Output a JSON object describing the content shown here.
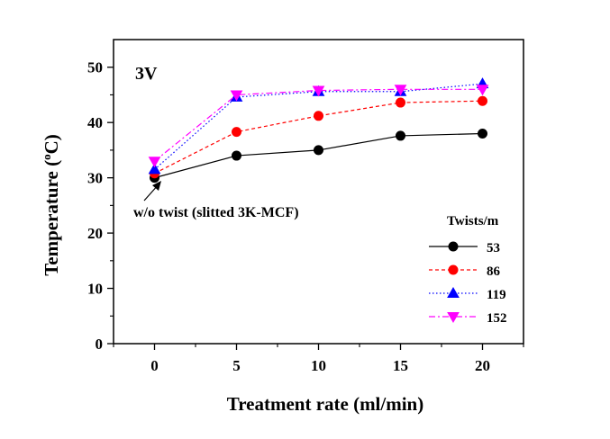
{
  "chart_data": {
    "type": "line",
    "panel_label": "3V",
    "xlabel": "Treatment rate (ml/min)",
    "ylabel": {
      "prefix": "Temperature (",
      "sup": "o",
      "suffix": "C)"
    },
    "xlim": [
      -2.5,
      22.5
    ],
    "ylim": [
      0,
      55
    ],
    "xticks": [
      0,
      5,
      10,
      15,
      20
    ],
    "yticks": [
      0,
      10,
      20,
      30,
      40,
      50
    ],
    "x": [
      0,
      5,
      10,
      15,
      20
    ],
    "legend_title": "Twists/m",
    "legend_position": "bottom-right",
    "annotation": "w/o twist (slitted 3K-MCF)",
    "series": [
      {
        "name": "53",
        "values": [
          30.0,
          34.0,
          35.0,
          37.6,
          38.0
        ],
        "color": "#000000",
        "marker": "circle",
        "dash": ""
      },
      {
        "name": "86",
        "values": [
          30.8,
          38.3,
          41.2,
          43.6,
          43.9
        ],
        "color": "#ff0000",
        "marker": "circle",
        "dash": "4,3"
      },
      {
        "name": "119",
        "values": [
          31.5,
          44.6,
          45.6,
          45.6,
          47.0
        ],
        "color": "#0000ff",
        "marker": "triangle-up",
        "dash": "1.5,2.5"
      },
      {
        "name": "152",
        "values": [
          33.0,
          45.0,
          45.8,
          46.0,
          46.0
        ],
        "color": "#ff00ff",
        "marker": "triangle-down",
        "dash": "7,3,2,3"
      }
    ]
  }
}
